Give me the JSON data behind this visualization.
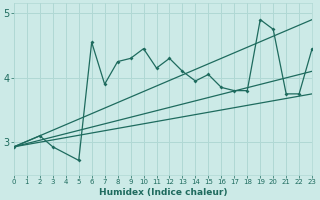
{
  "xlabel": "Humidex (Indice chaleur)",
  "xlim": [
    0,
    23
  ],
  "ylim": [
    2.5,
    5.15
  ],
  "yticks": [
    3,
    4,
    5
  ],
  "xticks": [
    0,
    1,
    2,
    3,
    4,
    5,
    6,
    7,
    8,
    9,
    10,
    11,
    12,
    13,
    14,
    15,
    16,
    17,
    18,
    19,
    20,
    21,
    22,
    23
  ],
  "bg_color": "#cceae7",
  "line_color": "#1e6b5e",
  "grid_color": "#b0d8d4",
  "main_x": [
    0,
    2,
    3,
    5,
    6,
    7,
    8,
    9,
    10,
    11,
    12,
    13,
    14,
    15,
    16,
    17,
    18,
    19,
    20,
    21,
    22,
    23
  ],
  "main_y": [
    2.93,
    3.1,
    2.93,
    2.72,
    4.55,
    3.9,
    4.25,
    4.3,
    4.45,
    4.15,
    4.3,
    4.1,
    3.95,
    4.05,
    3.85,
    3.8,
    3.8,
    4.9,
    4.75,
    3.75,
    3.75,
    4.45
  ],
  "trend1_x": [
    0,
    23
  ],
  "trend1_y": [
    2.93,
    3.75
  ],
  "trend2_x": [
    0,
    23
  ],
  "trend2_y": [
    2.93,
    4.1
  ],
  "trend3_x": [
    0,
    23
  ],
  "trend3_y": [
    2.93,
    4.9
  ]
}
